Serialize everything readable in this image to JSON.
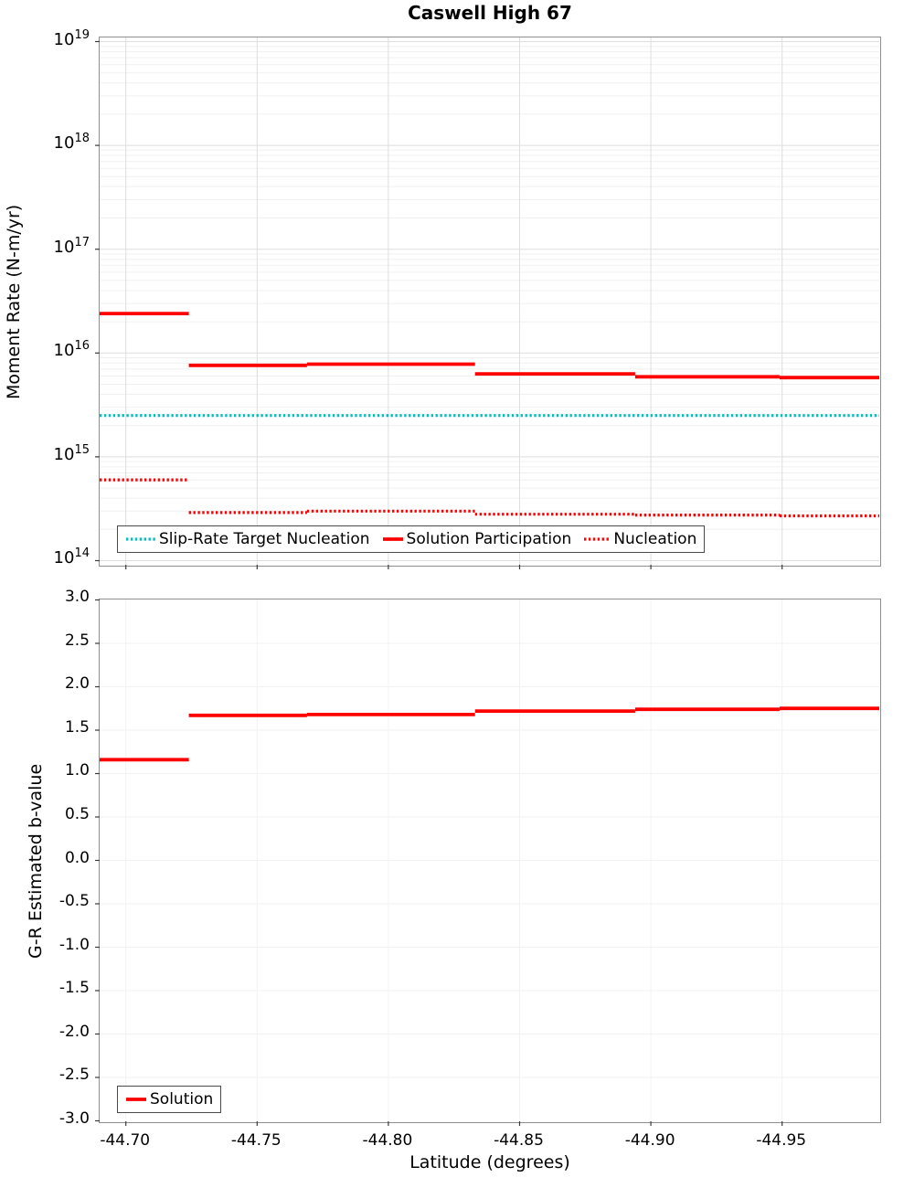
{
  "title": "Caswell High 67",
  "colors": {
    "red": "#ff0000",
    "cyan": "#00bfbf"
  },
  "top_chart": {
    "y_ticks": [
      {
        "base": "10",
        "exp": "19",
        "value": 1e+19
      },
      {
        "base": "10",
        "exp": "18",
        "value": 1e+18
      },
      {
        "base": "10",
        "exp": "17",
        "value": 1e+17
      },
      {
        "base": "10",
        "exp": "16",
        "value": 1e+16
      },
      {
        "base": "10",
        "exp": "15",
        "value": 1000000000000000.0
      },
      {
        "base": "10",
        "exp": "14",
        "value": 100000000000000.0
      }
    ]
  },
  "bottom_chart": {
    "y_ticks": [
      {
        "label": "3.0",
        "value": 3.0
      },
      {
        "label": "2.5",
        "value": 2.5
      },
      {
        "label": "2.0",
        "value": 2.0
      },
      {
        "label": "1.5",
        "value": 1.5
      },
      {
        "label": "1.0",
        "value": 1.0
      },
      {
        "label": "0.5",
        "value": 0.5
      },
      {
        "label": "0.0",
        "value": 0.0
      },
      {
        "label": "-0.5",
        "value": -0.5
      },
      {
        "label": "-1.0",
        "value": -1.0
      },
      {
        "label": "-1.5",
        "value": -1.5
      },
      {
        "label": "-2.0",
        "value": -2.0
      },
      {
        "label": "-2.5",
        "value": -2.5
      },
      {
        "label": "-3.0",
        "value": -3.0
      }
    ]
  },
  "x_axis": {
    "label": "Latitude (degrees)",
    "ticks": [
      {
        "label": "-44.70",
        "value": -44.7
      },
      {
        "label": "-44.75",
        "value": -44.75
      },
      {
        "label": "-44.80",
        "value": -44.8
      },
      {
        "label": "-44.85",
        "value": -44.85
      },
      {
        "label": "-44.90",
        "value": -44.9
      },
      {
        "label": "-44.95",
        "value": -44.95
      }
    ]
  },
  "chart_data": [
    {
      "type": "line",
      "title": "Caswell High 67",
      "ylabel": "Moment Rate (N-m/yr)",
      "xlabel": "",
      "yscale": "log",
      "ylim": [
        100000000000000.0,
        1e+19
      ],
      "xlim": [
        -44.69,
        -44.987
      ],
      "grid": true,
      "legend_position": "inside bottom-left",
      "series": [
        {
          "name": "Slip-Rate Target Nucleation",
          "color": "#00bfbf",
          "style": "dotted",
          "segments": [
            {
              "x0": -44.69,
              "x1": -44.987,
              "y": 2500000000000000.0
            }
          ]
        },
        {
          "name": "Solution Participation",
          "color": "#ff0000",
          "style": "solid",
          "segments": [
            {
              "x0": -44.69,
              "x1": -44.724,
              "y": 2.4e+16
            },
            {
              "x0": -44.724,
              "x1": -44.769,
              "y": 7600000000000000.0
            },
            {
              "x0": -44.769,
              "x1": -44.833,
              "y": 7800000000000000.0
            },
            {
              "x0": -44.833,
              "x1": -44.894,
              "y": 6300000000000000.0
            },
            {
              "x0": -44.894,
              "x1": -44.949,
              "y": 5900000000000000.0
            },
            {
              "x0": -44.949,
              "x1": -44.987,
              "y": 5800000000000000.0
            }
          ]
        },
        {
          "name": "Nucleation",
          "color": "#ff0000",
          "style": "dotted",
          "segments": [
            {
              "x0": -44.69,
              "x1": -44.724,
              "y": 600000000000000.0
            },
            {
              "x0": -44.724,
              "x1": -44.769,
              "y": 290000000000000.0
            },
            {
              "x0": -44.769,
              "x1": -44.833,
              "y": 300000000000000.0
            },
            {
              "x0": -44.833,
              "x1": -44.894,
              "y": 280000000000000.0
            },
            {
              "x0": -44.894,
              "x1": -44.949,
              "y": 275000000000000.0
            },
            {
              "x0": -44.949,
              "x1": -44.987,
              "y": 270000000000000.0
            }
          ]
        }
      ]
    },
    {
      "type": "line",
      "title": "",
      "ylabel": "G-R Estimated b-value",
      "xlabel": "Latitude (degrees)",
      "yscale": "linear",
      "ylim": [
        -3.0,
        3.0
      ],
      "xlim": [
        -44.69,
        -44.987
      ],
      "grid": true,
      "legend_position": "inside bottom-left",
      "series": [
        {
          "name": "Solution",
          "color": "#ff0000",
          "style": "solid",
          "segments": [
            {
              "x0": -44.69,
              "x1": -44.724,
              "y": 1.16
            },
            {
              "x0": -44.724,
              "x1": -44.769,
              "y": 1.67
            },
            {
              "x0": -44.769,
              "x1": -44.833,
              "y": 1.68
            },
            {
              "x0": -44.833,
              "x1": -44.894,
              "y": 1.72
            },
            {
              "x0": -44.894,
              "x1": -44.949,
              "y": 1.74
            },
            {
              "x0": -44.949,
              "x1": -44.987,
              "y": 1.75
            }
          ]
        }
      ]
    }
  ]
}
